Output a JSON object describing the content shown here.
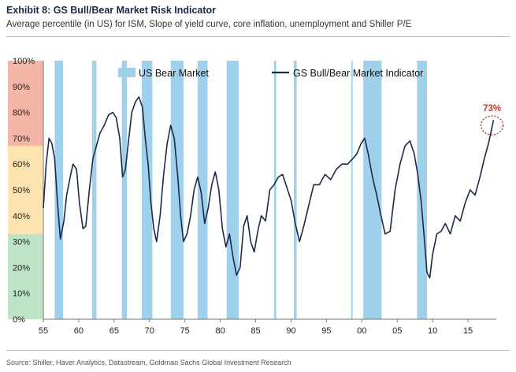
{
  "header": {
    "title": "Exhibit 8: GS Bull/Bear Market Risk Indicator",
    "subtitle": "Average percentile (in US) for ISM, Slope of yield curve, core inflation, unemployment and Shiller P/E"
  },
  "footer": {
    "source": "Source: Shiller, Haver Analytics, Datastream, Goldman Sachs Global Investment Research"
  },
  "colors": {
    "line": "#1b2a4a",
    "bear_bar": "#9fd0ec",
    "zone_high": "#f4b6a6",
    "zone_mid": "#fde3b0",
    "zone_low": "#bfe3c6",
    "callout": "#c0392b"
  },
  "chart_data": {
    "type": "line",
    "title": "",
    "xlabel": "",
    "ylabel": "",
    "xlim": [
      1955,
      2019
    ],
    "ylim": [
      0,
      100
    ],
    "x_tick_labels": [
      "55",
      "60",
      "65",
      "70",
      "75",
      "80",
      "85",
      "90",
      "95",
      "00",
      "05",
      "10",
      "15"
    ],
    "x_tick_values": [
      1955,
      1960,
      1965,
      1970,
      1975,
      1980,
      1985,
      1990,
      1995,
      2000,
      2005,
      2010,
      2015
    ],
    "y_tick_labels": [
      "0%",
      "10%",
      "20%",
      "30%",
      "40%",
      "50%",
      "60%",
      "70%",
      "80%",
      "90%",
      "100%"
    ],
    "y_tick_values": [
      0,
      10,
      20,
      30,
      40,
      50,
      60,
      70,
      80,
      90,
      100
    ],
    "legend": [
      "US Bear Market",
      "GS Bull/Bear Market Indicator"
    ],
    "legend_position": "top",
    "risk_zones": [
      {
        "from": 0,
        "to": 33,
        "level": "low"
      },
      {
        "from": 33,
        "to": 67,
        "level": "mid"
      },
      {
        "from": 67,
        "to": 100,
        "level": "high"
      }
    ],
    "bear_markets": [
      [
        1956.6,
        1957.8
      ],
      [
        1961.9,
        1962.5
      ],
      [
        1966.1,
        1966.8
      ],
      [
        1968.9,
        1970.4
      ],
      [
        1973.0,
        1974.8
      ],
      [
        1976.8,
        1978.2
      ],
      [
        1980.9,
        1982.6
      ],
      [
        1987.6,
        1987.9
      ],
      [
        1990.4,
        1990.8
      ],
      [
        1998.5,
        1998.7
      ],
      [
        2000.2,
        2002.8
      ],
      [
        2007.8,
        2009.2
      ]
    ],
    "series": [
      {
        "name": "GS Bull/Bear Market Indicator",
        "x": [
          1955.0,
          1955.4,
          1955.8,
          1956.2,
          1956.6,
          1957.0,
          1957.4,
          1957.9,
          1958.3,
          1958.8,
          1959.2,
          1959.7,
          1960.1,
          1960.6,
          1961.0,
          1961.5,
          1962.0,
          1962.4,
          1963.0,
          1963.6,
          1964.2,
          1964.8,
          1965.3,
          1965.8,
          1966.2,
          1966.6,
          1967.0,
          1967.5,
          1968.0,
          1968.5,
          1969.0,
          1969.4,
          1969.8,
          1970.2,
          1970.6,
          1971.0,
          1971.5,
          1972.0,
          1972.5,
          1973.0,
          1973.5,
          1974.0,
          1974.4,
          1974.8,
          1975.3,
          1975.8,
          1976.3,
          1976.8,
          1977.3,
          1977.8,
          1978.3,
          1978.8,
          1979.3,
          1979.8,
          1980.3,
          1980.8,
          1981.3,
          1981.8,
          1982.3,
          1982.8,
          1983.3,
          1983.8,
          1984.3,
          1984.8,
          1985.3,
          1985.8,
          1986.4,
          1987.0,
          1987.6,
          1988.2,
          1988.8,
          1989.4,
          1990.0,
          1990.6,
          1991.2,
          1991.8,
          1992.5,
          1993.2,
          1994.0,
          1994.8,
          1995.6,
          1996.4,
          1997.2,
          1998.0,
          1998.7,
          1999.3,
          1999.9,
          2000.4,
          2000.9,
          2001.5,
          2002.1,
          2002.7,
          2003.3,
          2004.0,
          2004.7,
          2005.4,
          2006.1,
          2006.8,
          2007.4,
          2007.9,
          2008.4,
          2008.8,
          2009.2,
          2009.6,
          2010.0,
          2010.6,
          2011.2,
          2011.8,
          2012.5,
          2013.2,
          2013.9,
          2014.6,
          2015.3,
          2016.0,
          2016.7,
          2017.3,
          2017.9,
          2018.3,
          2018.6
        ],
        "values": [
          43,
          60,
          70,
          68,
          62,
          45,
          31,
          38,
          48,
          55,
          60,
          58,
          45,
          35,
          36,
          50,
          62,
          66,
          72,
          75,
          79,
          80,
          78,
          70,
          55,
          58,
          68,
          80,
          84,
          86,
          82,
          70,
          60,
          45,
          35,
          30,
          40,
          56,
          68,
          75,
          70,
          55,
          40,
          30,
          33,
          40,
          50,
          55,
          49,
          37,
          43,
          52,
          57,
          50,
          35,
          28,
          33,
          24,
          17,
          20,
          36,
          40,
          30,
          26,
          34,
          40,
          38,
          50,
          52,
          55,
          56,
          51,
          46,
          37,
          30,
          36,
          44,
          52,
          52,
          56,
          54,
          58,
          60,
          60,
          62,
          64,
          68,
          70,
          64,
          55,
          48,
          40,
          33,
          34,
          50,
          60,
          67,
          69,
          64,
          56,
          45,
          32,
          18,
          16,
          25,
          33,
          34,
          37,
          33,
          40,
          38,
          45,
          50,
          48,
          55,
          62,
          68,
          73,
          77
        ]
      }
    ],
    "annotations": [
      {
        "text": "73%",
        "x": 2018.4,
        "y": 75
      }
    ]
  }
}
